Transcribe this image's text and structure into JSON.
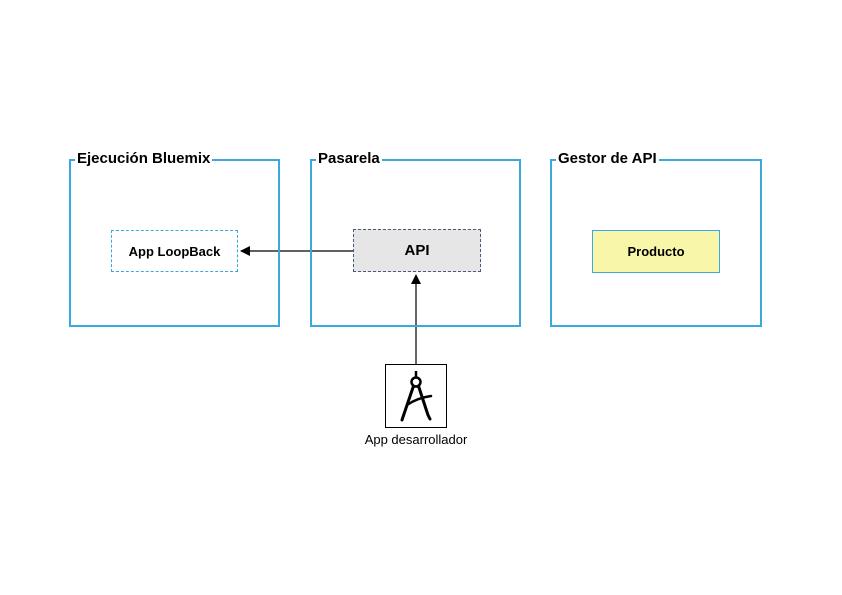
{
  "groups": {
    "runtime": {
      "title": "Ejecución Bluemix"
    },
    "gateway": {
      "title": "Pasarela"
    },
    "manager": {
      "title": "Gestor de API"
    }
  },
  "nodes": {
    "loopback_app": {
      "label": "App LoopBack"
    },
    "api": {
      "label": "API"
    },
    "product": {
      "label": "Producto"
    },
    "developer_app": {
      "label": "App desarrollador",
      "icon": "drafting-compass-icon"
    }
  },
  "edges": [
    {
      "from": "api",
      "to": "loopback_app"
    },
    {
      "from": "developer_app",
      "to": "api"
    }
  ],
  "colors": {
    "group_border": "#3aa8dc",
    "api_fill": "#e6e6e6",
    "api_border": "#4a5a78",
    "product_fill": "#f8f6a8"
  }
}
